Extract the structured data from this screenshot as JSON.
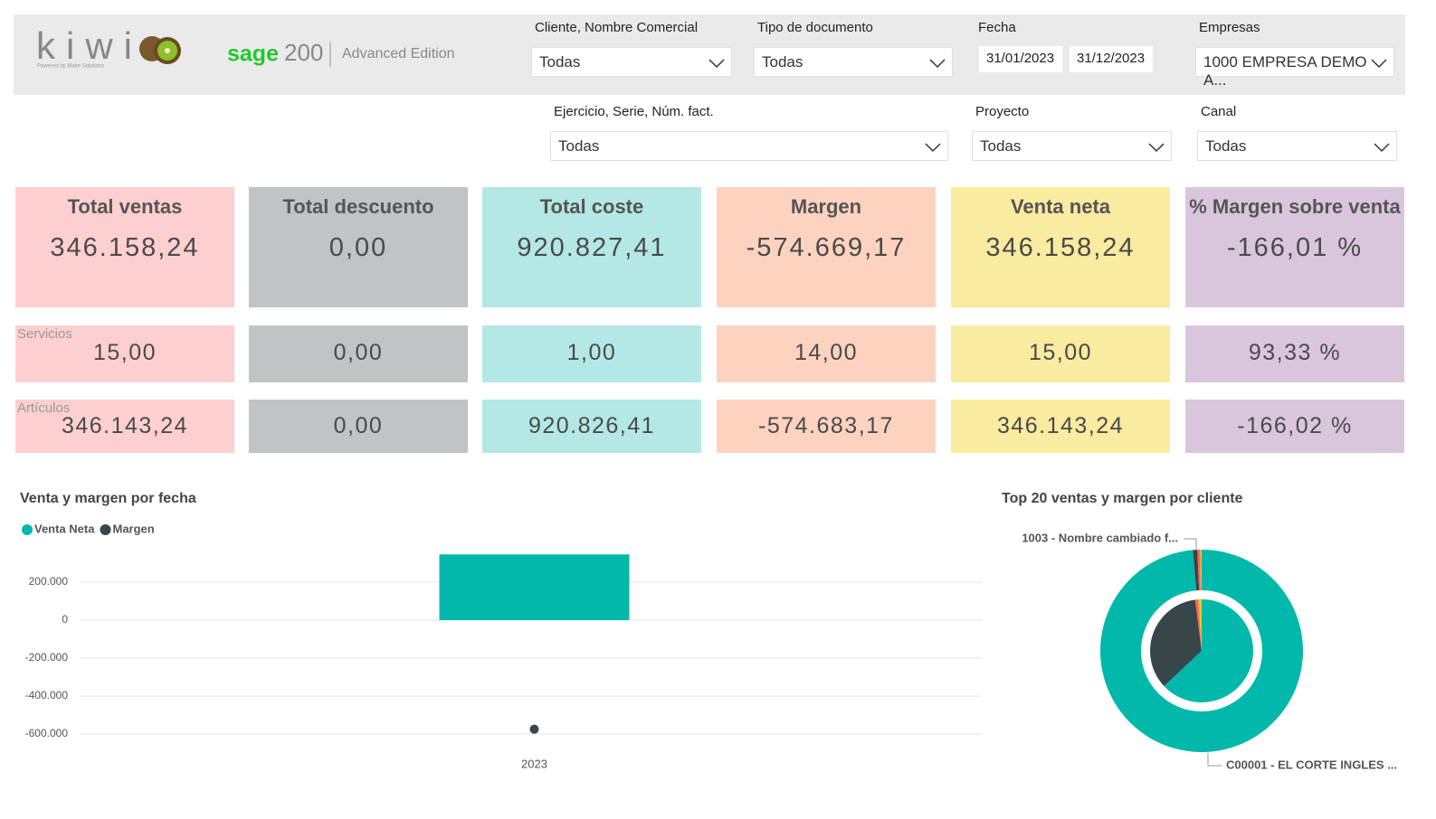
{
  "header": {
    "logo": "kiwi",
    "tagline": "Powered by Make Solutions",
    "brand": "sage",
    "version": "200",
    "edition": "Advanced Edition"
  },
  "filters": [
    {
      "label": "Cliente, Nombre Comercial",
      "value": "Todas"
    },
    {
      "label": "Tipo de documento",
      "value": "Todas"
    },
    {
      "label": "Empresas",
      "value": "1000 EMPRESA DEMO A..."
    },
    {
      "label": "Ejercicio, Serie, Núm. fact.",
      "value": "Todas"
    },
    {
      "label": "Proyecto",
      "value": "Todas"
    },
    {
      "label": "Canal",
      "value": "Todas"
    }
  ],
  "date_filter": {
    "label": "Fecha",
    "from": "31/01/2023",
    "to": "31/12/2023"
  },
  "kpis": {
    "row_labels": [
      "Servicios",
      "Artículos"
    ],
    "cards": [
      {
        "title": "Total ventas",
        "total": "346.158,24",
        "rows": [
          "15,00",
          "346.143,24"
        ],
        "color": "#fdd0cf"
      },
      {
        "title": "Total descuento",
        "total": "0,00",
        "rows": [
          "0,00",
          "0,00"
        ],
        "color": "#c0c4c4"
      },
      {
        "title": "Total coste",
        "total": "920.827,41",
        "rows": [
          "1,00",
          "920.826,41"
        ],
        "color": "#b3e8e4"
      },
      {
        "title": "Margen",
        "total": "-574.669,17",
        "rows": [
          "14,00",
          "-574.683,17"
        ],
        "color": "#fdd3c0"
      },
      {
        "title": "Venta neta",
        "total": "346.158,24",
        "rows": [
          "15,00",
          "346.143,24"
        ],
        "color": "#f9eba0"
      },
      {
        "title": "% Margen sobre venta",
        "total": "-166,01 %",
        "rows": [
          "93,33 %",
          "-166,02 %"
        ],
        "color": "#d9c6dc"
      }
    ]
  },
  "chart_data": [
    {
      "type": "bar",
      "title": "Venta y margen por fecha",
      "categories": [
        "2023"
      ],
      "series": [
        {
          "name": "Venta Neta",
          "color": "#01b8aa",
          "values": [
            346158.24
          ]
        },
        {
          "name": "Margen",
          "color": "#374649",
          "type": "line",
          "values": [
            -574669.17
          ]
        }
      ],
      "ylim": [
        -700000,
        400000
      ],
      "yticks": [
        {
          "value": 200000,
          "label": "200.000"
        },
        0,
        {
          "value": -200000,
          "label": "-200.000"
        },
        {
          "value": -400000,
          "label": "-400.000"
        },
        {
          "value": -600000,
          "label": "-600.000"
        }
      ],
      "grid": true
    },
    {
      "type": "donut",
      "title": "Top 20 ventas y margen por cliente",
      "categories": [
        "C00001 - EL CORTE INGLES ...",
        "1003 - Nombre cambiado f...",
        null,
        null
      ],
      "colors": [
        "#01b8aa",
        "#374649",
        "#fd625e",
        "#f2c80f"
      ],
      "rings": [
        {
          "values": [
            340000,
            2500,
            1500,
            800
          ]
        },
        {
          "values": [
            63,
            35,
            1,
            1
          ]
        }
      ]
    }
  ]
}
